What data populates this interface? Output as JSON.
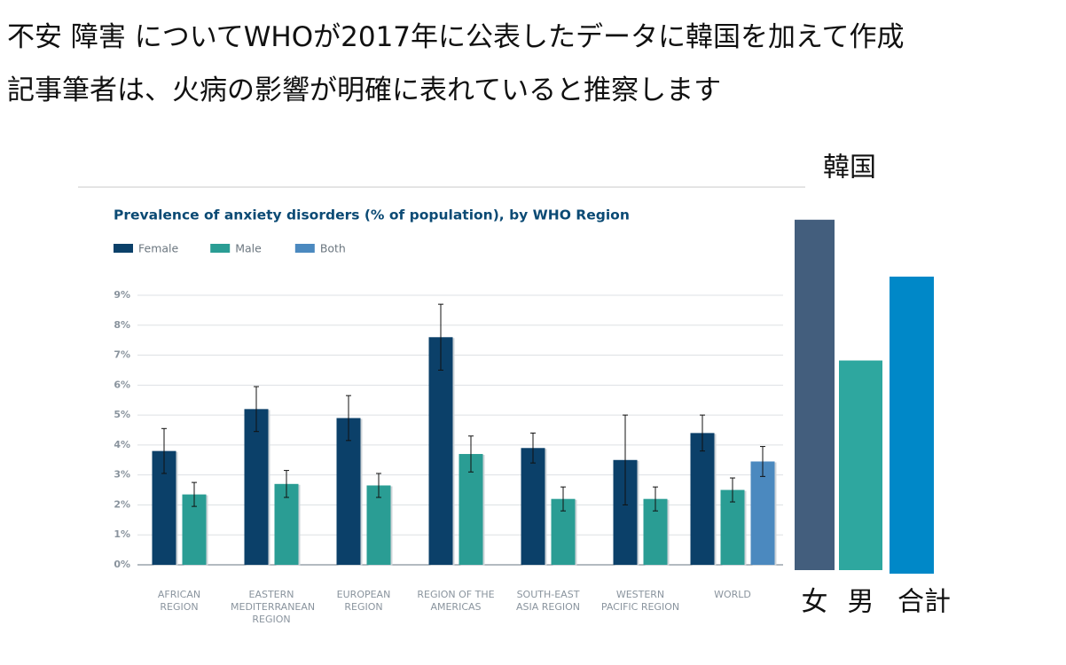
{
  "header": {
    "lines": [
      "不安 障害 についてWHOが2017年に公表したデータに韓国を加えて作成",
      "記事筆者は、火病の影響が明確に表れていると推察します"
    ]
  },
  "chart_data": [
    {
      "type": "bar",
      "title": "Prevalence of anxiety disorders (% of population), by WHO Region",
      "categories": [
        "AFRICAN REGION",
        "EASTERN MEDITERRANEAN REGION",
        "EUROPEAN REGION",
        "REGION OF THE AMERICAS",
        "SOUTH-EAST ASIA REGION",
        "WESTERN PACIFIC REGION",
        "WORLD"
      ],
      "series": [
        {
          "name": "Female",
          "color": "#0b4069",
          "values": [
            3.8,
            5.2,
            4.9,
            7.6,
            3.9,
            3.5,
            4.4
          ],
          "errors": [
            0.75,
            0.75,
            0.75,
            1.1,
            0.5,
            1.5,
            0.6
          ]
        },
        {
          "name": "Male",
          "color": "#2a9d94",
          "values": [
            2.35,
            2.7,
            2.65,
            3.7,
            2.2,
            2.2,
            2.5
          ],
          "errors": [
            0.4,
            0.45,
            0.4,
            0.6,
            0.4,
            0.4,
            0.4
          ]
        },
        {
          "name": "Both",
          "color": "#4b89bf",
          "values": [
            null,
            null,
            null,
            null,
            null,
            null,
            3.45
          ],
          "errors": [
            null,
            null,
            null,
            null,
            null,
            null,
            0.5
          ]
        }
      ],
      "ylim": [
        0,
        9
      ],
      "yticks": [
        {
          "value": 0,
          "label": "0%"
        },
        {
          "value": 1,
          "label": "1%"
        },
        {
          "value": 2,
          "label": "2%"
        },
        {
          "value": 3,
          "label": "3%"
        },
        {
          "value": 4,
          "label": "4%"
        },
        {
          "value": 5,
          "label": "5%"
        },
        {
          "value": 6,
          "label": "6%"
        },
        {
          "value": 7,
          "label": "7%"
        },
        {
          "value": 8,
          "label": "8%"
        },
        {
          "value": 9,
          "label": "9%"
        }
      ],
      "grid": true
    },
    {
      "type": "bar",
      "title": "韓国",
      "categories": [
        "女",
        "男",
        "合計"
      ],
      "values": [
        11.7,
        7.0,
        9.8
      ],
      "colors": [
        "#435e7d",
        "#2ea79f",
        "#0088c8"
      ]
    }
  ]
}
